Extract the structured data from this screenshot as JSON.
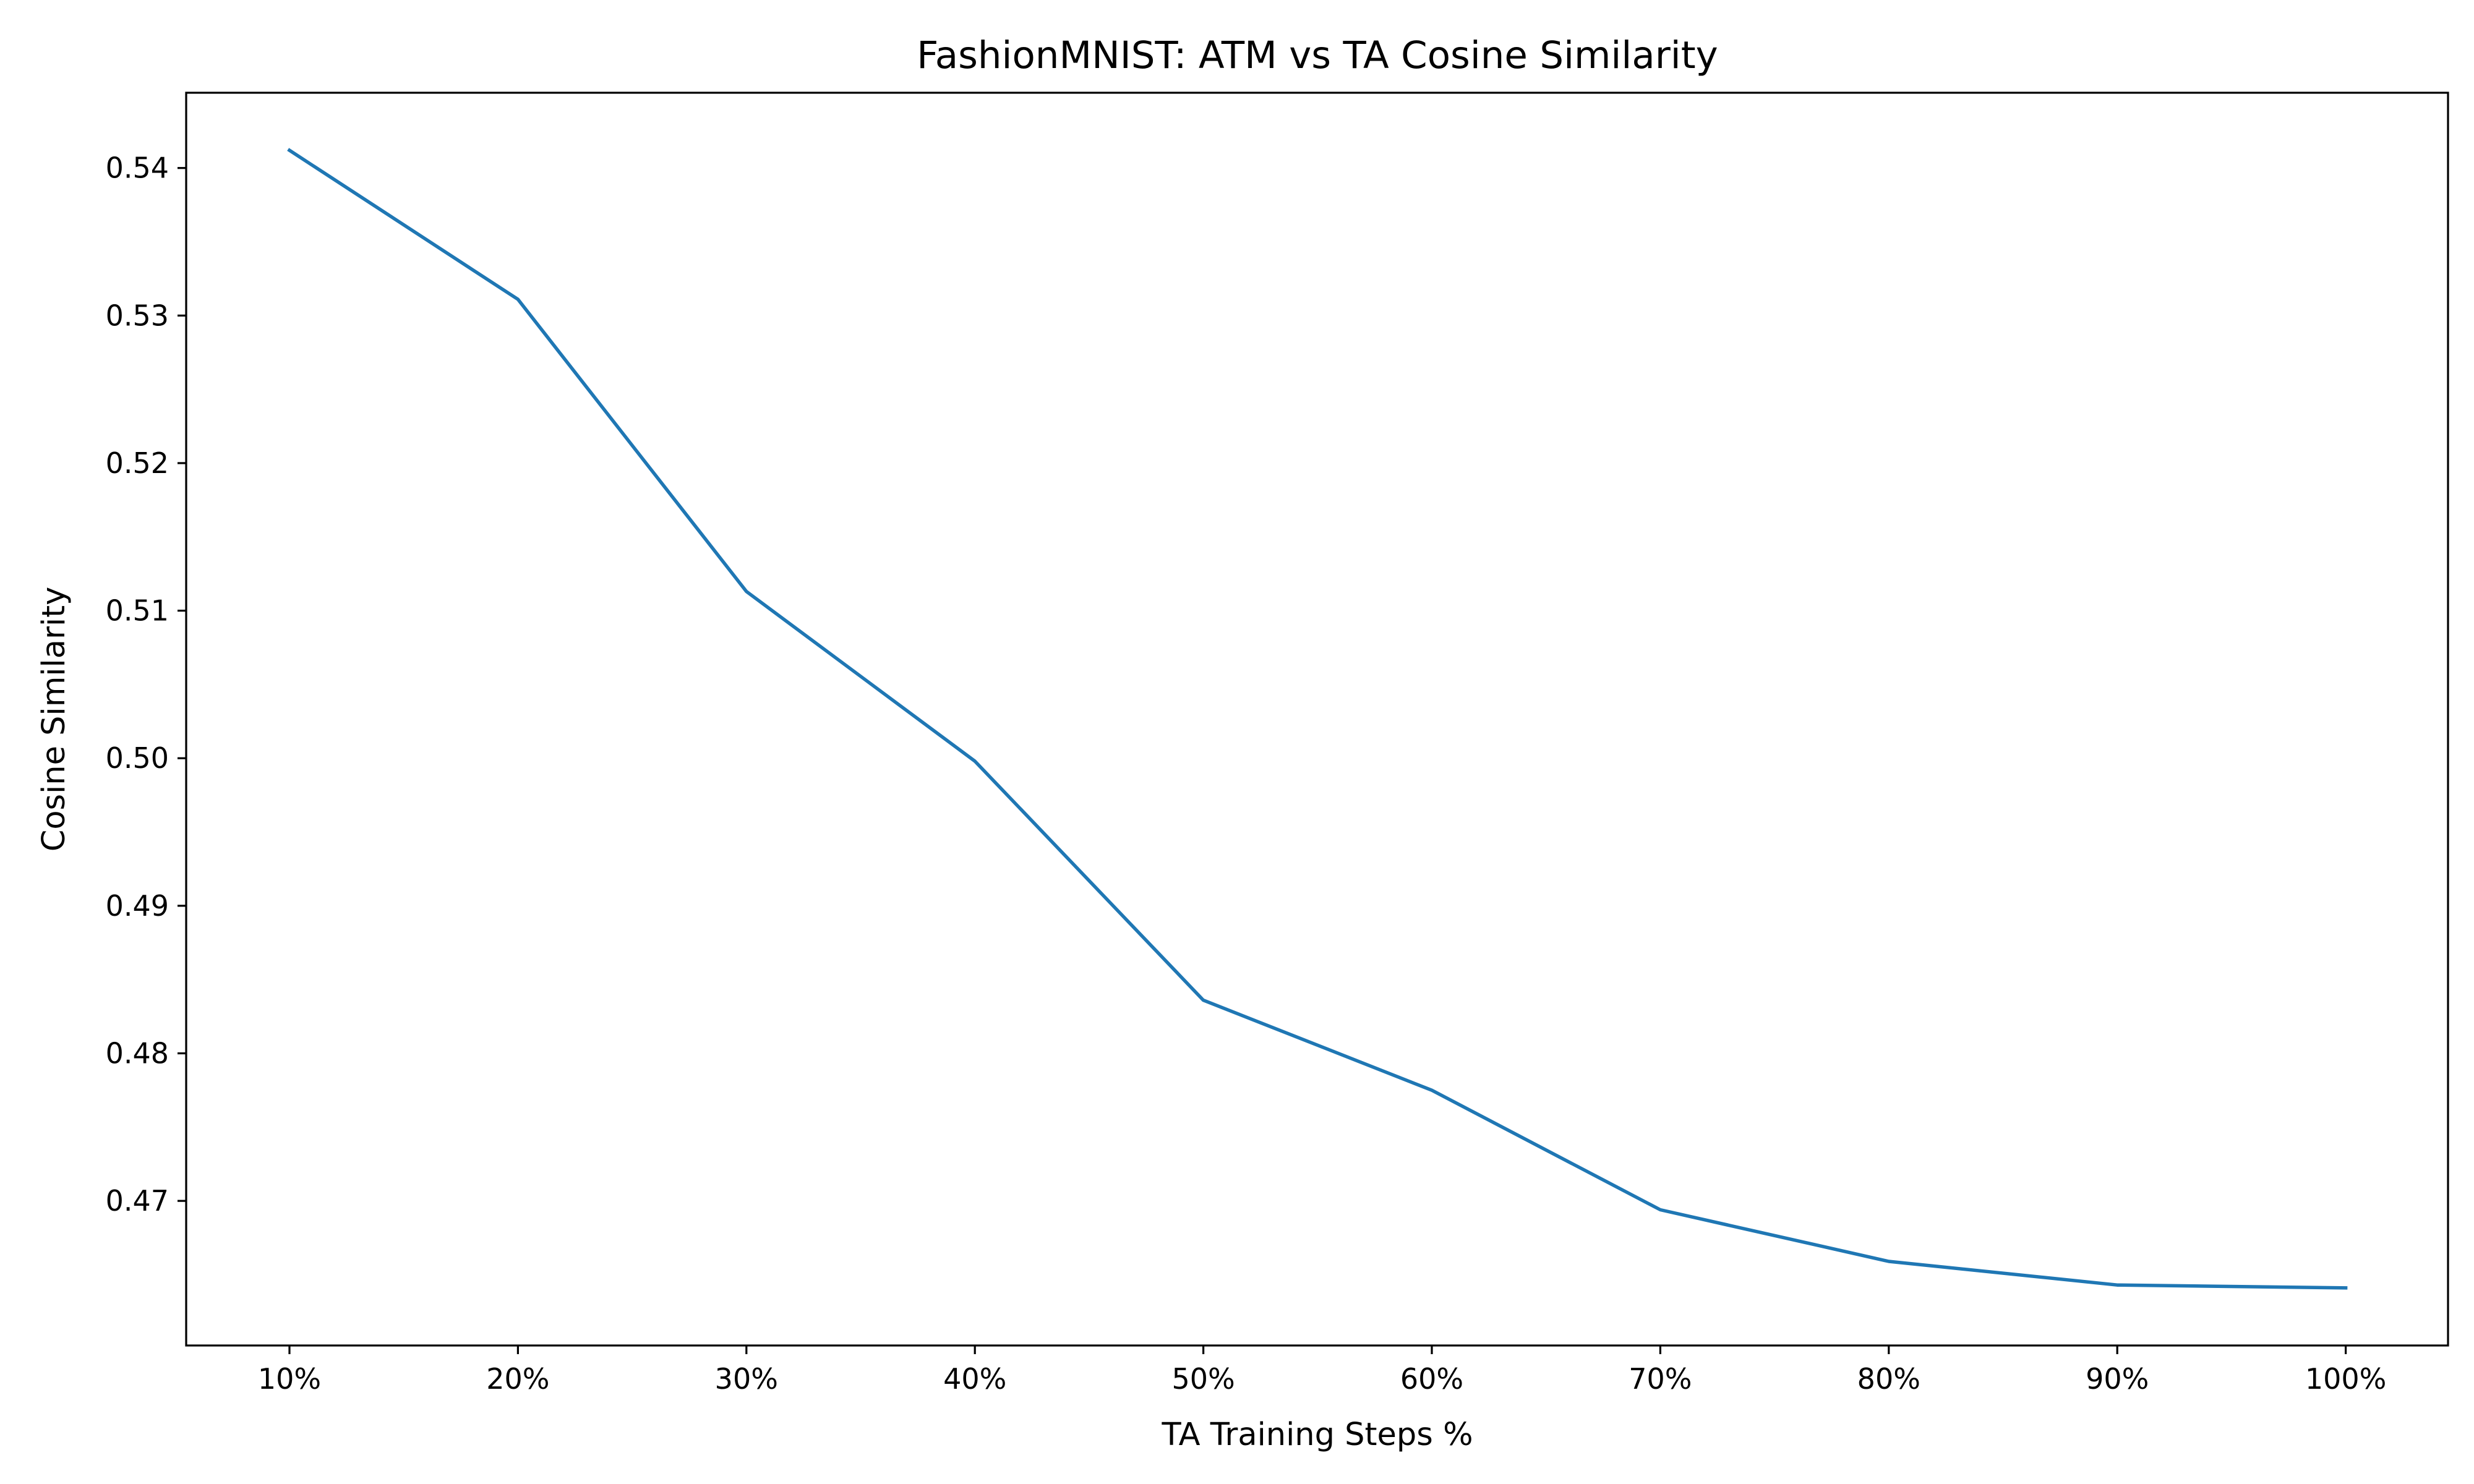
{
  "chart_data": {
    "type": "line",
    "title": "FashionMNIST: ATM vs TA Cosine Similarity",
    "xlabel": "TA Training Steps %",
    "ylabel": "Cosine Similarity",
    "categories": [
      "10%",
      "20%",
      "30%",
      "40%",
      "50%",
      "60%",
      "70%",
      "80%",
      "90%",
      "100%"
    ],
    "series": [
      {
        "color": "#1f77b4",
        "values": [
          0.5412,
          0.5311,
          0.5113,
          0.4998,
          0.4836,
          0.4775,
          0.4694,
          0.4659,
          0.4643,
          0.4641
        ]
      }
    ],
    "yticks": [
      0.47,
      0.48,
      0.49,
      0.5,
      0.51,
      0.52,
      0.53,
      0.54
    ],
    "ytick_labels": [
      "0.47",
      "0.48",
      "0.49",
      "0.50",
      "0.51",
      "0.52",
      "0.53",
      "0.54"
    ],
    "ylim": [
      0.4602,
      0.5451
    ],
    "grid": false,
    "legend": "none"
  }
}
